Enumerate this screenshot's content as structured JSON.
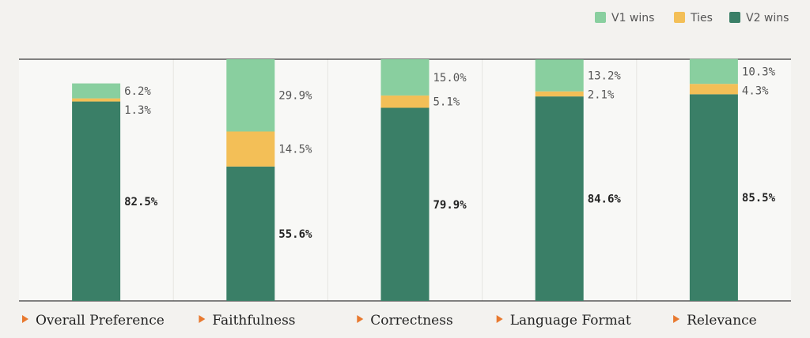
{
  "chart_data": {
    "type": "bar",
    "stacked": true,
    "orientation": "vertical",
    "categories": [
      "Overall Preference",
      "Faithfulness",
      "Correctness",
      "Language Format",
      "Relevance"
    ],
    "series": [
      {
        "name": "V2 wins",
        "color": "#3a7f67",
        "values": [
          82.5,
          55.6,
          79.9,
          84.6,
          85.5
        ]
      },
      {
        "name": "Ties",
        "color": "#f3bf57",
        "values": [
          1.3,
          14.5,
          5.1,
          2.1,
          4.3
        ]
      },
      {
        "name": "V1 wins",
        "color": "#89cf9f",
        "values": [
          6.2,
          29.9,
          15.0,
          13.2,
          10.3
        ]
      }
    ],
    "legend_order": [
      "V1 wins",
      "Ties",
      "V2 wins"
    ],
    "legend_position": "top-right",
    "ylim": [
      0,
      100
    ],
    "title": "",
    "xlabel": "",
    "ylabel": ""
  },
  "colors": {
    "background": "#f3f2ef",
    "panel_light": "#f8f8f6",
    "axis_line": "#3a3a3a",
    "marker": "#e8792f"
  },
  "marker_icon": "triangle-right-icon"
}
